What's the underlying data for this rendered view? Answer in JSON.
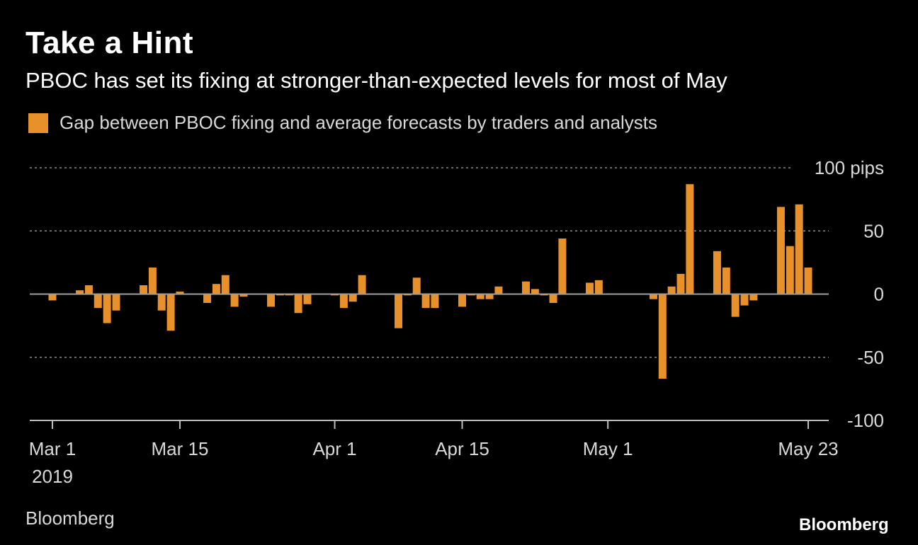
{
  "header": {
    "title": "Take a Hint",
    "subtitle": "PBOC has set its fixing at stronger-than-expected levels for most of May"
  },
  "footer": {
    "source": "Bloomberg",
    "brand": "Bloomberg"
  },
  "colors": {
    "bar": "#e8912b",
    "background": "#000000",
    "grid": "#8a8a8a",
    "axis": "#bdbdbd",
    "text": "#d9d9d9"
  },
  "chart_data": {
    "type": "bar",
    "legend": [
      "Gap between PBOC fixing and average forecasts by traders and analysts"
    ],
    "legend_position": "top-left",
    "grid": true,
    "ylim": [
      -100,
      100
    ],
    "y_ticks": [
      {
        "value": 100,
        "label": "100 pips"
      },
      {
        "value": 50,
        "label": "50"
      },
      {
        "value": 0,
        "label": "0"
      },
      {
        "value": -50,
        "label": "-50"
      },
      {
        "value": -100,
        "label": "-100"
      }
    ],
    "x_ticks": [
      {
        "date": "2019-03-01",
        "label": "Mar 1",
        "sublabel": "2019"
      },
      {
        "date": "2019-03-15",
        "label": "Mar 15"
      },
      {
        "date": "2019-04-01",
        "label": "Apr 1"
      },
      {
        "date": "2019-04-15",
        "label": "Apr 15"
      },
      {
        "date": "2019-05-01",
        "label": "May 1"
      },
      {
        "date": "2019-05-23",
        "label": "May 23"
      }
    ],
    "series": [
      {
        "name": "Gap between PBOC fixing and average forecasts by traders and analysts",
        "points": [
          {
            "date": "2019-03-01",
            "value": -5
          },
          {
            "date": "2019-03-04",
            "value": 3
          },
          {
            "date": "2019-03-05",
            "value": 7
          },
          {
            "date": "2019-03-06",
            "value": -11
          },
          {
            "date": "2019-03-07",
            "value": -23
          },
          {
            "date": "2019-03-08",
            "value": -13
          },
          {
            "date": "2019-03-11",
            "value": 7
          },
          {
            "date": "2019-03-12",
            "value": 21
          },
          {
            "date": "2019-03-13",
            "value": -13
          },
          {
            "date": "2019-03-14",
            "value": -29
          },
          {
            "date": "2019-03-15",
            "value": 2
          },
          {
            "date": "2019-03-18",
            "value": -7
          },
          {
            "date": "2019-03-19",
            "value": 8
          },
          {
            "date": "2019-03-20",
            "value": 15
          },
          {
            "date": "2019-03-21",
            "value": -10
          },
          {
            "date": "2019-03-22",
            "value": -2
          },
          {
            "date": "2019-03-25",
            "value": -10
          },
          {
            "date": "2019-03-26",
            "value": -1
          },
          {
            "date": "2019-03-27",
            "value": -1
          },
          {
            "date": "2019-03-28",
            "value": -15
          },
          {
            "date": "2019-03-29",
            "value": -8
          },
          {
            "date": "2019-04-01",
            "value": -1
          },
          {
            "date": "2019-04-02",
            "value": -11
          },
          {
            "date": "2019-04-03",
            "value": -6
          },
          {
            "date": "2019-04-04",
            "value": 15
          },
          {
            "date": "2019-04-08",
            "value": -27
          },
          {
            "date": "2019-04-09",
            "value": -1
          },
          {
            "date": "2019-04-10",
            "value": 13
          },
          {
            "date": "2019-04-11",
            "value": -11
          },
          {
            "date": "2019-04-12",
            "value": -11
          },
          {
            "date": "2019-04-15",
            "value": -10
          },
          {
            "date": "2019-04-16",
            "value": -1
          },
          {
            "date": "2019-04-17",
            "value": -4
          },
          {
            "date": "2019-04-18",
            "value": -4
          },
          {
            "date": "2019-04-19",
            "value": 6
          },
          {
            "date": "2019-04-22",
            "value": 10
          },
          {
            "date": "2019-04-23",
            "value": 4
          },
          {
            "date": "2019-04-24",
            "value": -1
          },
          {
            "date": "2019-04-25",
            "value": -7
          },
          {
            "date": "2019-04-26",
            "value": 44
          },
          {
            "date": "2019-04-29",
            "value": 9
          },
          {
            "date": "2019-04-30",
            "value": 11
          },
          {
            "date": "2019-05-06",
            "value": -4
          },
          {
            "date": "2019-05-07",
            "value": -67
          },
          {
            "date": "2019-05-08",
            "value": 6
          },
          {
            "date": "2019-05-09",
            "value": 16
          },
          {
            "date": "2019-05-10",
            "value": 87
          },
          {
            "date": "2019-05-13",
            "value": 34
          },
          {
            "date": "2019-05-14",
            "value": 21
          },
          {
            "date": "2019-05-15",
            "value": -18
          },
          {
            "date": "2019-05-16",
            "value": -9
          },
          {
            "date": "2019-05-17",
            "value": -5
          },
          {
            "date": "2019-05-20",
            "value": 69
          },
          {
            "date": "2019-05-21",
            "value": 38
          },
          {
            "date": "2019-05-22",
            "value": 71
          },
          {
            "date": "2019-05-23",
            "value": 21
          }
        ]
      }
    ]
  }
}
